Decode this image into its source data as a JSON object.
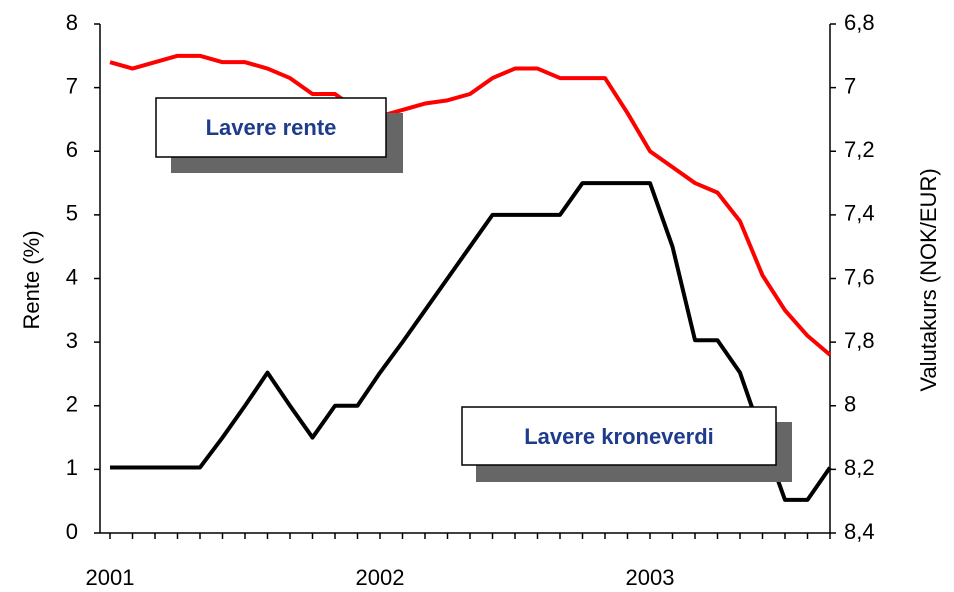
{
  "chart_data": {
    "type": "line",
    "y_label": "Rente (%)",
    "y2_label": "Valutakurs (NOK/EUR)",
    "categories": [
      "2001",
      null,
      null,
      null,
      null,
      null,
      null,
      null,
      null,
      null,
      null,
      null,
      "2002",
      null,
      null,
      null,
      null,
      null,
      null,
      null,
      null,
      null,
      null,
      null,
      "2003",
      null,
      null,
      null,
      null,
      null,
      null,
      null,
      null
    ],
    "series": [
      {
        "color": "#000000",
        "values": [
          1.03,
          1.03,
          1.03,
          1.03,
          1.03,
          1.5,
          2.0,
          2.52,
          2.0,
          1.5,
          2.0,
          2.0,
          2.52,
          3.0,
          3.5,
          4.0,
          4.5,
          5.0,
          5.0,
          5.0,
          5.0,
          5.5,
          5.5,
          5.5,
          5.5,
          4.5,
          3.03,
          3.03,
          2.52,
          1.5,
          0.52,
          0.52,
          1.03
        ]
      },
      {
        "color": "#ff0000",
        "axis": "y2",
        "values": [
          6.92,
          6.94,
          6.92,
          6.9,
          6.9,
          6.92,
          6.92,
          6.94,
          6.97,
          7.02,
          7.02,
          7.07,
          7.09,
          7.07,
          7.05,
          7.04,
          7.02,
          6.97,
          6.94,
          6.94,
          6.97,
          6.97,
          6.97,
          7.08,
          7.2,
          7.25,
          7.3,
          7.33,
          7.42,
          7.59,
          7.7,
          7.78,
          7.84
        ]
      }
    ],
    "ylim": [
      0,
      8
    ],
    "yticks": [
      0,
      1,
      2,
      3,
      4,
      5,
      6,
      7,
      8
    ],
    "y2lim": [
      6.8,
      8.4
    ],
    "y2_inverted": true,
    "y2ticks": [
      {
        "value": 6.8,
        "label": "6,8"
      },
      7,
      {
        "value": 7.2,
        "label": "7,2"
      },
      {
        "value": 7.4,
        "label": "7,4"
      },
      {
        "value": 7.6,
        "label": "7,6"
      },
      {
        "value": 7.8,
        "label": "7,8"
      },
      8,
      {
        "value": 8.2,
        "label": "8,2"
      },
      {
        "value": 8.4,
        "label": "8,4"
      }
    ],
    "annotations": [
      {
        "text": "Lavere rente"
      },
      {
        "text": "Lavere kroneverdi"
      }
    ]
  }
}
